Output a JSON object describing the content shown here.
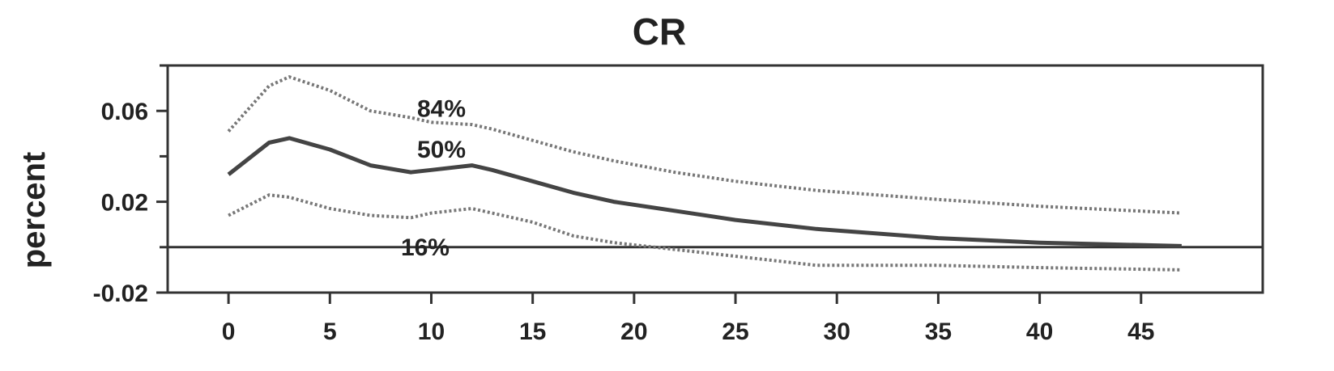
{
  "chart_data": {
    "type": "line",
    "title": "CR",
    "xlabel": "",
    "ylabel": "percent",
    "xlim": [
      -3,
      51
    ],
    "ylim": [
      -0.02,
      0.08
    ],
    "xticks": [
      0,
      5,
      10,
      15,
      20,
      25,
      30,
      35,
      40,
      45
    ],
    "xtick_labels": [
      "0",
      "5",
      "10",
      "15",
      "20",
      "25",
      "30",
      "35",
      "40",
      "45"
    ],
    "yticks": [
      -0.02,
      0.02,
      0.06
    ],
    "ytick_labels": [
      "-0.02",
      "0.02",
      "0.06"
    ],
    "zero_line": 0,
    "grid": false,
    "x": [
      0,
      2,
      3,
      5,
      7,
      9,
      10,
      12,
      13,
      15,
      17,
      19,
      22,
      25,
      29,
      35,
      40,
      47
    ],
    "series": [
      {
        "name": "84%",
        "style": "dotted",
        "values": [
          0.051,
          0.071,
          0.075,
          0.069,
          0.06,
          0.057,
          0.055,
          0.054,
          0.052,
          0.047,
          0.042,
          0.038,
          0.033,
          0.029,
          0.025,
          0.021,
          0.018,
          0.015
        ]
      },
      {
        "name": "50%",
        "style": "solid",
        "values": [
          0.032,
          0.046,
          0.048,
          0.043,
          0.036,
          0.033,
          0.034,
          0.036,
          0.034,
          0.029,
          0.024,
          0.02,
          0.016,
          0.012,
          0.008,
          0.004,
          0.002,
          0.0005
        ]
      },
      {
        "name": "16%",
        "style": "dotted",
        "values": [
          0.014,
          0.023,
          0.022,
          0.017,
          0.014,
          0.013,
          0.015,
          0.017,
          0.015,
          0.011,
          0.005,
          0.002,
          -0.001,
          -0.004,
          -0.008,
          -0.008,
          -0.009,
          -0.01
        ]
      }
    ],
    "band_labels": [
      {
        "text": "84%",
        "x": 10.5,
        "y": 0.061
      },
      {
        "text": "50%",
        "x": 10.5,
        "y": 0.043
      },
      {
        "text": "16%",
        "x": 9.7,
        "y": 0.0
      }
    ]
  }
}
